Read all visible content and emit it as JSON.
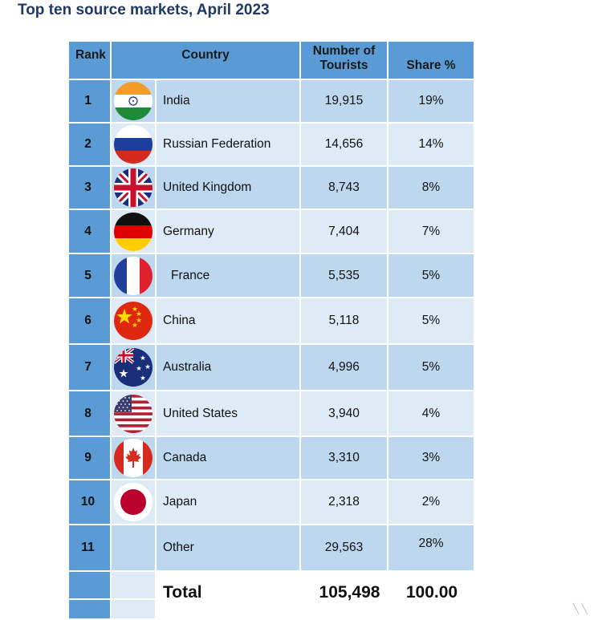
{
  "title": "Top ten source markets, April 2023",
  "headers": {
    "rank": "Rank",
    "country": "Country",
    "tourists": "Number of Tourists",
    "share": "Share %"
  },
  "rows": [
    {
      "rank": "1",
      "country": "India",
      "tourists": "19,915",
      "share": "19%",
      "flag": "india-flag-icon"
    },
    {
      "rank": "2",
      "country": "Russian Federation",
      "tourists": "14,656",
      "share": "14%",
      "flag": "russia-flag-icon"
    },
    {
      "rank": "3",
      "country": "United Kingdom",
      "tourists": "8,743",
      "share": "8%",
      "flag": "uk-flag-icon"
    },
    {
      "rank": "4",
      "country": "Germany",
      "tourists": "7,404",
      "share": "7%",
      "flag": "germany-flag-icon"
    },
    {
      "rank": "5",
      "country": "France",
      "tourists": "5,535",
      "share": "5%",
      "flag": "france-flag-icon"
    },
    {
      "rank": "6",
      "country": "China",
      "tourists": "5,118",
      "share": "5%",
      "flag": "china-flag-icon"
    },
    {
      "rank": "7",
      "country": "Australia",
      "tourists": "4,996",
      "share": "5%",
      "flag": "australia-flag-icon"
    },
    {
      "rank": "8",
      "country": "United States",
      "tourists": "3,940",
      "share": "4%",
      "flag": "usa-flag-icon"
    },
    {
      "rank": "9",
      "country": "Canada",
      "tourists": "3,310",
      "share": "3%",
      "flag": "canada-flag-icon"
    },
    {
      "rank": "10",
      "country": "Japan",
      "tourists": "2,318",
      "share": "2%",
      "flag": "japan-flag-icon"
    },
    {
      "rank": "11",
      "country": "Other",
      "tourists": "29,563",
      "share": "28%",
      "flag": ""
    }
  ],
  "total": {
    "label": "Total",
    "tourists": "105,498",
    "share": "100.00"
  },
  "colors": {
    "header": "#5b9bd5",
    "row_dark": "#bdd7ee",
    "row_light": "#deebf7",
    "title": "#1f3864"
  }
}
